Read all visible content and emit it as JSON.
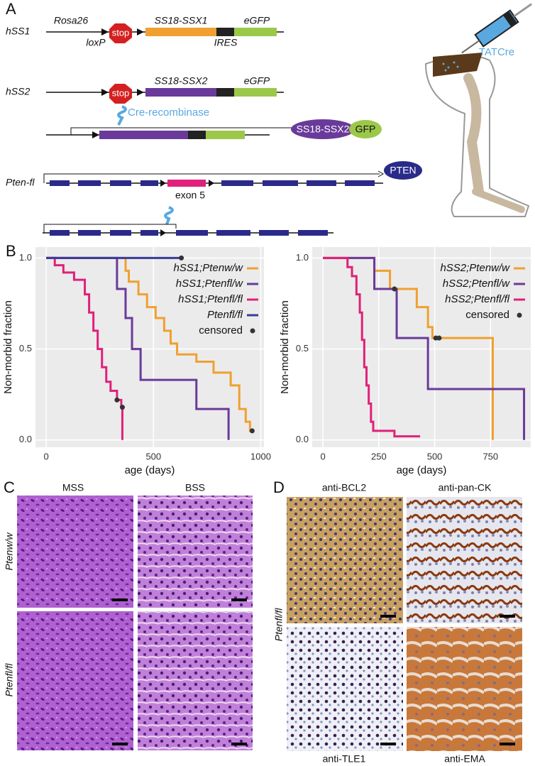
{
  "panel_labels": [
    "A",
    "B",
    "C",
    "D"
  ],
  "diagram": {
    "rows": [
      {
        "label": "hSS1",
        "promoter": "Rosa26",
        "stop": "stop",
        "gene": "SS18-SSX1",
        "reporter": "eGFP",
        "loxp": "loxP",
        "ires": "IRES"
      },
      {
        "label": "hSS2",
        "stop": "stop",
        "gene": "SS18-SSX2",
        "reporter": "eGFP"
      }
    ],
    "cre": "Cre-recombinase",
    "products": [
      "SS18-SSX2",
      "GFP"
    ],
    "pten_label": "Pten-fl",
    "pten_product": "PTEN",
    "exon": "exon 5",
    "injection": "TATCre"
  },
  "chart_data": [
    {
      "type": "step",
      "x_label": "age (days)",
      "y_label": "Non-morbid fraction",
      "xlim": [
        -50,
        1015
      ],
      "ylim": [
        -0.04,
        1.06
      ],
      "xticks": [
        0,
        500,
        1000
      ],
      "yticks": [
        {
          "value": 0,
          "label": "0.0"
        },
        0.5,
        {
          "value": 1,
          "label": "1.0"
        }
      ],
      "grid": true,
      "legend": "top-right",
      "series": [
        {
          "name": "hSS1;Ptenw/w",
          "color": "#f0a030",
          "x": [
            0,
            370,
            385,
            430,
            470,
            510,
            550,
            580,
            610,
            700,
            780,
            860,
            900,
            930,
            950,
            960
          ],
          "values": [
            1,
            0.93,
            0.87,
            0.8,
            0.73,
            0.67,
            0.6,
            0.53,
            0.47,
            0.43,
            0.37,
            0.3,
            0.17,
            0.1,
            0.05,
            0.05
          ]
        },
        {
          "name": "hSS1;Ptenfl/w",
          "color": "#6a3a9a",
          "x": [
            0,
            330,
            370,
            400,
            440,
            700,
            850
          ],
          "values": [
            1,
            0.83,
            0.67,
            0.5,
            0.33,
            0.17,
            0
          ]
        },
        {
          "name": "hSS1;Ptenfl/fl",
          "color": "#e0207a",
          "x": [
            0,
            40,
            80,
            130,
            180,
            200,
            220,
            240,
            260,
            280,
            300,
            330,
            350,
            355
          ],
          "values": [
            1,
            0.96,
            0.92,
            0.88,
            0.8,
            0.7,
            0.6,
            0.5,
            0.4,
            0.32,
            0.27,
            0.22,
            0.18,
            0
          ]
        },
        {
          "name": "Ptenfl/fl",
          "color": "#3a3a9a",
          "x": [
            0,
            630
          ],
          "values": [
            1,
            1
          ]
        },
        {
          "name": "censored",
          "color": "#333",
          "marker": "point",
          "x": [
            630,
            330,
            355,
            960
          ],
          "values": [
            1,
            0.22,
            0.18,
            0.05
          ]
        }
      ]
    },
    {
      "type": "step",
      "x_label": "age (days)",
      "y_label": "Non-morbid fraction",
      "xlim": [
        -48,
        930
      ],
      "ylim": [
        -0.04,
        1.06
      ],
      "xticks": [
        0,
        250,
        500,
        750
      ],
      "yticks": [
        {
          "value": 0,
          "label": "0.0"
        },
        0.5,
        {
          "value": 1,
          "label": "1.0"
        }
      ],
      "grid": true,
      "legend": "top-right",
      "series": [
        {
          "name": "hSS2;Ptenw/w",
          "color": "#f0a030",
          "x": [
            0,
            230,
            300,
            420,
            470,
            490,
            760
          ],
          "values": [
            1,
            0.93,
            0.83,
            0.73,
            0.62,
            0.56,
            0
          ]
        },
        {
          "name": "hSS2;Ptenfl/w",
          "color": "#6a3a9a",
          "x": [
            0,
            230,
            330,
            470,
            900
          ],
          "values": [
            1,
            0.83,
            0.56,
            0.28,
            0
          ]
        },
        {
          "name": "hSS2;Ptenfl/fl",
          "color": "#e0207a",
          "x": [
            0,
            110,
            130,
            150,
            165,
            175,
            185,
            195,
            205,
            215,
            225,
            320,
            435
          ],
          "values": [
            1,
            0.95,
            0.9,
            0.8,
            0.7,
            0.55,
            0.4,
            0.3,
            0.2,
            0.1,
            0.05,
            0.02,
            0.02
          ]
        },
        {
          "name": "censored",
          "color": "#333",
          "marker": "point",
          "x": [
            320,
            505,
            520
          ],
          "values": [
            0.83,
            0.56,
            0.56
          ]
        }
      ]
    }
  ],
  "histology": {
    "panel_C": {
      "columns": [
        "MSS",
        "BSS"
      ],
      "rows": [
        "Ptenw/w",
        "Ptenfl/fl"
      ]
    },
    "panel_D": {
      "row": "Ptenfl/fl",
      "stains": [
        "anti-BCL2",
        "anti-pan-CK",
        "anti-TLE1",
        "anti-EMA"
      ]
    }
  }
}
